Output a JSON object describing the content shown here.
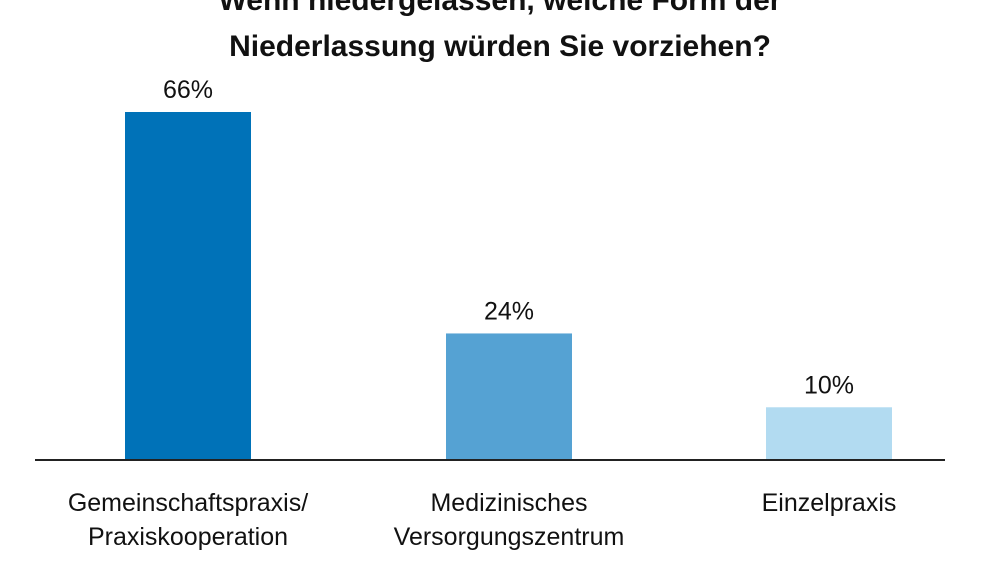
{
  "title_lines": [
    "Wenn niedergelassen, welche Form der",
    "Niederlassung würden Sie vorziehen?"
  ],
  "chart_data": {
    "type": "bar",
    "title": "Wenn niedergelassen, welche Form der Niederlassung würden Sie vorziehen?",
    "categories": [
      "Gemeinschaftspraxis/ Praxiskooperation",
      "Medizinisches Versorgungszentrum",
      "Einzelpraxis"
    ],
    "category_lines": [
      [
        "Gemeinschaftspraxis/",
        "Praxiskooperation"
      ],
      [
        "Medizinisches",
        "Versorgungszentrum"
      ],
      [
        "Einzelpraxis"
      ]
    ],
    "values": [
      66,
      24,
      10
    ],
    "value_labels": [
      "66%",
      "24%",
      "10%"
    ],
    "bar_colors": [
      "#0072b8",
      "#55a2d3",
      "#b2dbf1"
    ],
    "ylim": [
      0,
      66
    ],
    "grid": false,
    "xlabel": "",
    "ylabel": ""
  }
}
